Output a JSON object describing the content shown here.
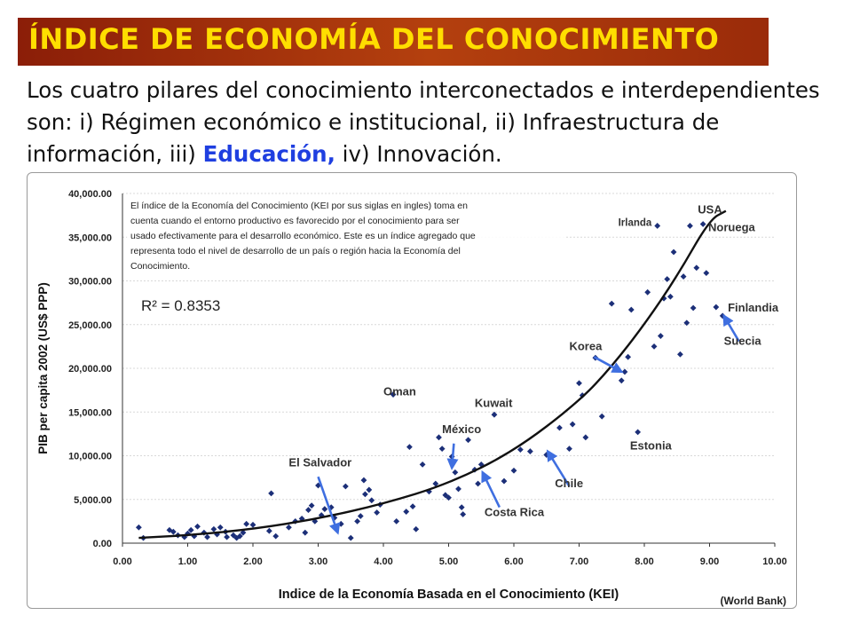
{
  "slide": {
    "title": "ÍNDICE DE ECONOMÍA DEL CONOCIMIENTO",
    "intro_part1": "Los cuatro pilares del conocimiento interconectados e interdependientes son: i) Régimen económico e institucional, ii) Infraestructura de información, iii) ",
    "intro_highlight": "Educación,",
    "intro_part2": " iv) Innovación.",
    "accent_colors": {
      "title_bg": "#a8320c",
      "title_text": "#ffde00",
      "highlight": "#1f3fe0",
      "points": "#1c2f78",
      "arrows": "#3f6fe0"
    }
  },
  "chart_data": {
    "type": "scatter",
    "xlabel": "Indice de la Economía Basada en el Conocimiento (KEI)",
    "ylabel": "PIB per capita 2002 (US$ PPP)",
    "xlim": [
      0,
      10
    ],
    "ylim": [
      0,
      40000
    ],
    "x_ticks": [
      "0.00",
      "1.00",
      "2.00",
      "3.00",
      "4.00",
      "5.00",
      "6.00",
      "7.00",
      "8.00",
      "9.00",
      "10.00"
    ],
    "y_ticks": [
      "0.00",
      "5,000.00",
      "10,000.00",
      "15,000.00",
      "20,000.00",
      "25,000.00",
      "30,000.00",
      "35,000.00",
      "40,000.00"
    ],
    "grid": "horizontal",
    "description_box": "El índice de la Economía del Conocimiento (KEI por sus siglas en ingles) toma en cuenta cuando el entorno productivo es favorecido por el conocimiento para ser usado efectivamente para el desarrollo económico. Este es un índice agregado que representa todo el nivel de desarrollo de un país o región hacia la Economía del Conocimiento.",
    "r_squared": "R² = 0.8353",
    "source": "(World Bank)",
    "trendline": [
      [
        0.25,
        600
      ],
      [
        1,
        900
      ],
      [
        2,
        1600
      ],
      [
        3,
        2800
      ],
      [
        4,
        4500
      ],
      [
        5,
        6800
      ],
      [
        6,
        10500
      ],
      [
        7,
        16200
      ],
      [
        7.5,
        20200
      ],
      [
        8,
        25000
      ],
      [
        8.5,
        30500
      ],
      [
        9,
        37000
      ],
      [
        9.25,
        38000
      ]
    ],
    "annotations": [
      {
        "text": "USA",
        "x": 8.82,
        "y": 37700
      },
      {
        "text": "Irlanda",
        "x": 7.6,
        "y": 36300
      },
      {
        "text": "Noruega",
        "x": 8.98,
        "y": 35700
      },
      {
        "text": "Finlandia",
        "x": 9.28,
        "y": 26500
      },
      {
        "text": "Suecia",
        "x": 9.22,
        "y": 22700
      },
      {
        "text": "Korea",
        "x": 6.85,
        "y": 22100
      },
      {
        "text": "Oman",
        "x": 4.0,
        "y": 16900
      },
      {
        "text": "Kuwait",
        "x": 5.4,
        "y": 15600
      },
      {
        "text": "México",
        "x": 4.9,
        "y": 12600
      },
      {
        "text": "Estonia",
        "x": 7.78,
        "y": 10700
      },
      {
        "text": "El Salvador",
        "x": 2.55,
        "y": 8800
      },
      {
        "text": "Chile",
        "x": 6.63,
        "y": 6400
      },
      {
        "text": "Costa Rica",
        "x": 5.55,
        "y": 3100
      }
    ],
    "arrows": [
      {
        "from": [
          3.0,
          7600
        ],
        "to": [
          3.3,
          1200
        ]
      },
      {
        "from": [
          5.08,
          11400
        ],
        "to": [
          5.05,
          8600
        ]
      },
      {
        "from": [
          5.78,
          4100
        ],
        "to": [
          5.52,
          8100
        ]
      },
      {
        "from": [
          6.85,
          6500
        ],
        "to": [
          6.52,
          10500
        ]
      },
      {
        "from": [
          7.23,
          21300
        ],
        "to": [
          7.65,
          19600
        ]
      },
      {
        "from": [
          9.45,
          23100
        ],
        "to": [
          9.22,
          26000
        ]
      }
    ],
    "series": [
      {
        "points": [
          [
            0.25,
            1800
          ],
          [
            0.32,
            600
          ],
          [
            0.72,
            1500
          ],
          [
            0.78,
            1300
          ],
          [
            0.85,
            900
          ],
          [
            0.95,
            700
          ],
          [
            1.0,
            1100
          ],
          [
            1.05,
            1500
          ],
          [
            1.1,
            800
          ],
          [
            1.15,
            1900
          ],
          [
            1.25,
            1200
          ],
          [
            1.3,
            700
          ],
          [
            1.4,
            1600
          ],
          [
            1.45,
            1000
          ],
          [
            1.5,
            1800
          ],
          [
            1.58,
            1300
          ],
          [
            1.6,
            700
          ],
          [
            1.7,
            900
          ],
          [
            1.75,
            600
          ],
          [
            1.8,
            800
          ],
          [
            1.85,
            1200
          ],
          [
            1.9,
            2200
          ],
          [
            2.0,
            2100
          ],
          [
            2.25,
            1400
          ],
          [
            2.28,
            5700
          ],
          [
            2.35,
            800
          ],
          [
            2.55,
            1800
          ],
          [
            2.65,
            2500
          ],
          [
            2.75,
            2800
          ],
          [
            2.8,
            1200
          ],
          [
            2.85,
            3800
          ],
          [
            2.9,
            4300
          ],
          [
            2.95,
            2500
          ],
          [
            3.0,
            6600
          ],
          [
            3.05,
            3200
          ],
          [
            3.1,
            3900
          ],
          [
            3.2,
            4100
          ],
          [
            3.25,
            2900
          ],
          [
            3.35,
            2200
          ],
          [
            3.42,
            6500
          ],
          [
            3.5,
            600
          ],
          [
            3.6,
            2500
          ],
          [
            3.65,
            3100
          ],
          [
            3.7,
            7200
          ],
          [
            3.72,
            5600
          ],
          [
            3.78,
            6100
          ],
          [
            3.82,
            4900
          ],
          [
            3.9,
            3500
          ],
          [
            3.95,
            4400
          ],
          [
            4.15,
            17000
          ],
          [
            4.2,
            2500
          ],
          [
            4.35,
            3600
          ],
          [
            4.4,
            11000
          ],
          [
            4.45,
            4200
          ],
          [
            4.5,
            1600
          ],
          [
            4.6,
            9000
          ],
          [
            4.7,
            5900
          ],
          [
            4.8,
            6800
          ],
          [
            4.85,
            12100
          ],
          [
            4.9,
            10800
          ],
          [
            4.95,
            5500
          ],
          [
            5.0,
            5200
          ],
          [
            5.05,
            9900
          ],
          [
            5.1,
            8100
          ],
          [
            5.15,
            6200
          ],
          [
            5.2,
            4100
          ],
          [
            5.22,
            3300
          ],
          [
            5.3,
            11800
          ],
          [
            5.4,
            8400
          ],
          [
            5.45,
            6800
          ],
          [
            5.5,
            9000
          ],
          [
            5.7,
            14700
          ],
          [
            5.85,
            7100
          ],
          [
            6.0,
            8300
          ],
          [
            6.1,
            10700
          ],
          [
            6.25,
            10500
          ],
          [
            6.5,
            10100
          ],
          [
            6.7,
            13200
          ],
          [
            6.85,
            10800
          ],
          [
            6.9,
            13600
          ],
          [
            7.0,
            18300
          ],
          [
            7.05,
            16900
          ],
          [
            7.1,
            12100
          ],
          [
            7.25,
            21200
          ],
          [
            7.35,
            14500
          ],
          [
            7.5,
            27400
          ],
          [
            7.65,
            18600
          ],
          [
            7.7,
            19600
          ],
          [
            7.75,
            21300
          ],
          [
            7.8,
            26700
          ],
          [
            7.9,
            12700
          ],
          [
            8.05,
            28700
          ],
          [
            8.15,
            22500
          ],
          [
            8.25,
            23700
          ],
          [
            8.3,
            28000
          ],
          [
            8.35,
            30200
          ],
          [
            8.4,
            28200
          ],
          [
            8.45,
            33300
          ],
          [
            8.55,
            21600
          ],
          [
            8.6,
            30500
          ],
          [
            8.65,
            25200
          ],
          [
            8.7,
            36300
          ],
          [
            8.75,
            26900
          ],
          [
            8.8,
            31500
          ],
          [
            8.9,
            36500
          ],
          [
            8.95,
            30900
          ],
          [
            9.1,
            27000
          ],
          [
            9.2,
            26000
          ],
          [
            8.2,
            36300
          ]
        ]
      }
    ]
  }
}
